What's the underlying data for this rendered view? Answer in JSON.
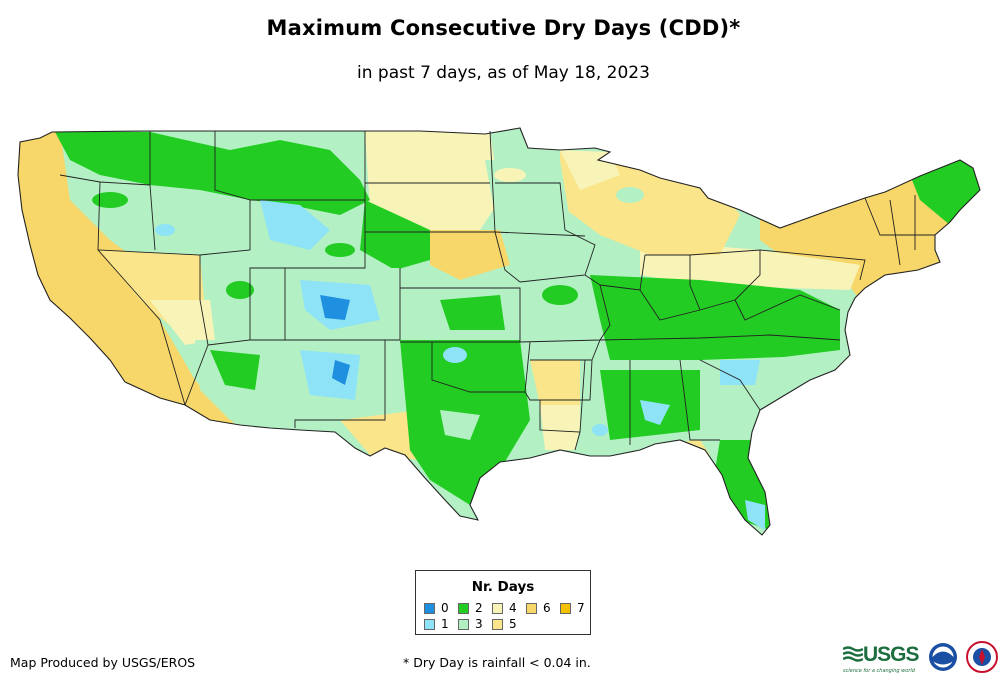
{
  "title": "Maximum Consecutive Dry Days (CDD)*",
  "subtitle": "in past 7 days, as of May 18, 2023",
  "legend": {
    "title": "Nr. Days",
    "items": [
      {
        "label": "0",
        "color": "#1f8fe0"
      },
      {
        "label": "1",
        "color": "#8ee3f6"
      },
      {
        "label": "2",
        "color": "#22cc22"
      },
      {
        "label": "3",
        "color": "#b3f0c4"
      },
      {
        "label": "4",
        "color": "#f8f4b8"
      },
      {
        "label": "5",
        "color": "#fbe58a"
      },
      {
        "label": "6",
        "color": "#f7d76a"
      },
      {
        "label": "7",
        "color": "#f5c000"
      }
    ]
  },
  "credit": "Map Produced by USGS/EROS",
  "footnote": "* Dry Day is rainfall < 0.04 in.",
  "logos": {
    "usgs": "USGS",
    "usgs_tagline": "science for a changing world",
    "noaa": "NOAA",
    "nws": "National Weather Service"
  },
  "colors": {
    "state_border": "#222222"
  }
}
